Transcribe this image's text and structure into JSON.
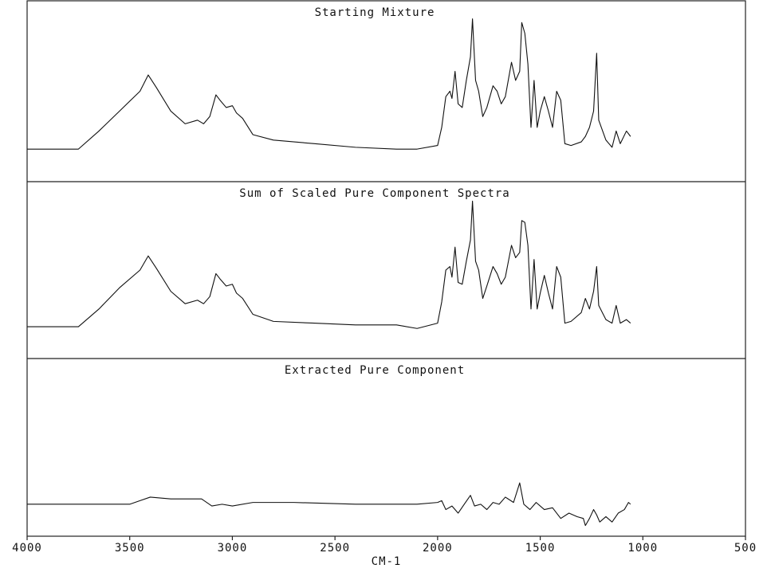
{
  "chart_data": [
    {
      "type": "line",
      "title": "Starting Mixture",
      "x": [
        4000,
        3750,
        3650,
        3550,
        3450,
        3410,
        3370,
        3300,
        3230,
        3170,
        3140,
        3110,
        3080,
        3060,
        3030,
        3000,
        2980,
        2950,
        2900,
        2800,
        2600,
        2400,
        2200,
        2100,
        2000,
        1980,
        1960,
        1940,
        1930,
        1915,
        1900,
        1880,
        1860,
        1840,
        1830,
        1815,
        1800,
        1780,
        1760,
        1730,
        1710,
        1690,
        1670,
        1640,
        1620,
        1600,
        1590,
        1575,
        1560,
        1545,
        1530,
        1515,
        1500,
        1480,
        1460,
        1440,
        1420,
        1400,
        1380,
        1350,
        1300,
        1280,
        1260,
        1240,
        1225,
        1215,
        1180,
        1150,
        1130,
        1110,
        1080,
        1060
      ],
      "series": [
        {
          "color": "#111111",
          "values": [
            18,
            18,
            28,
            39,
            50,
            59,
            52,
            39,
            32,
            34,
            32,
            36,
            48,
            45,
            41,
            42,
            38,
            35,
            26,
            23,
            21,
            19,
            18,
            18,
            20,
            30,
            47,
            50,
            46,
            61,
            43,
            41,
            56,
            69,
            90,
            56,
            50,
            36,
            41,
            53,
            50,
            43,
            47,
            66,
            56,
            61,
            88,
            82,
            65,
            30,
            56,
            30,
            39,
            47,
            39,
            30,
            50,
            45,
            21,
            20,
            22,
            25,
            30,
            39,
            71,
            34,
            23,
            19,
            28,
            21,
            28,
            25
          ]
        }
      ],
      "xlim": [
        4000,
        500
      ],
      "ylim": [
        0,
        100
      ]
    },
    {
      "type": "line",
      "title": "Sum of Scaled Pure Component Spectra",
      "x": [
        4000,
        3750,
        3650,
        3550,
        3450,
        3410,
        3370,
        3300,
        3230,
        3170,
        3140,
        3110,
        3080,
        3060,
        3030,
        3000,
        2980,
        2950,
        2900,
        2800,
        2600,
        2400,
        2200,
        2100,
        2000,
        1980,
        1960,
        1940,
        1930,
        1915,
        1900,
        1880,
        1860,
        1840,
        1830,
        1815,
        1800,
        1780,
        1760,
        1730,
        1710,
        1690,
        1670,
        1640,
        1620,
        1600,
        1590,
        1575,
        1560,
        1545,
        1530,
        1515,
        1500,
        1480,
        1460,
        1440,
        1420,
        1400,
        1380,
        1350,
        1300,
        1280,
        1260,
        1240,
        1225,
        1215,
        1180,
        1150,
        1130,
        1110,
        1080,
        1060
      ],
      "series": [
        {
          "color": "#111111",
          "values": [
            18,
            18,
            28,
            40,
            50,
            58,
            51,
            38,
            31,
            33,
            31,
            35,
            48,
            45,
            41,
            42,
            37,
            34,
            25,
            21,
            20,
            19,
            19,
            17,
            20,
            32,
            50,
            52,
            46,
            63,
            43,
            42,
            55,
            67,
            89,
            55,
            50,
            34,
            41,
            52,
            48,
            42,
            46,
            64,
            57,
            60,
            78,
            77,
            64,
            28,
            56,
            28,
            37,
            47,
            37,
            28,
            52,
            46,
            20,
            21,
            26,
            34,
            28,
            38,
            52,
            30,
            22,
            20,
            30,
            20,
            22,
            20
          ]
        }
      ],
      "xlim": [
        4000,
        500
      ],
      "ylim": [
        0,
        100
      ]
    },
    {
      "type": "line",
      "title": "Extracted Pure Component",
      "x": [
        4000,
        3500,
        3450,
        3400,
        3300,
        3150,
        3100,
        3050,
        3000,
        2900,
        2700,
        2400,
        2100,
        2000,
        1980,
        1960,
        1930,
        1900,
        1870,
        1840,
        1820,
        1790,
        1760,
        1730,
        1700,
        1670,
        1630,
        1600,
        1580,
        1550,
        1520,
        1480,
        1440,
        1400,
        1360,
        1320,
        1290,
        1280,
        1260,
        1240,
        1225,
        1210,
        1180,
        1150,
        1120,
        1090,
        1070,
        1060
      ],
      "series": [
        {
          "color": "#111111",
          "values": [
            18,
            18,
            20,
            22,
            21,
            21,
            17,
            18,
            17,
            19,
            19,
            18,
            18,
            19,
            20,
            15,
            17,
            13,
            18,
            23,
            17,
            18,
            15,
            19,
            18,
            22,
            19,
            30,
            18,
            15,
            19,
            15,
            16,
            10,
            13,
            11,
            10,
            6,
            10,
            15,
            12,
            8,
            11,
            8,
            13,
            15,
            19,
            18
          ]
        }
      ],
      "xlim": [
        4000,
        500
      ],
      "ylim": [
        0,
        100
      ],
      "xticks": [
        4000,
        3500,
        3000,
        2500,
        2000,
        1500,
        1000,
        500
      ],
      "xlabel": "CM-1"
    }
  ]
}
